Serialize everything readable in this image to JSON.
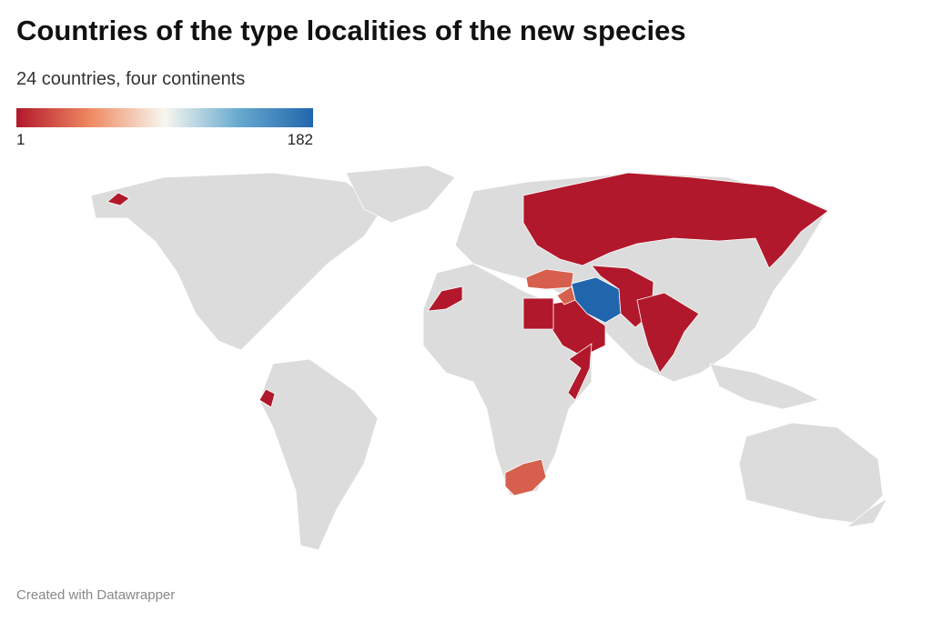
{
  "header": {
    "title": "Countries of the type localities of the new species",
    "subtitle": "24 countries, four continents"
  },
  "legend": {
    "min": 1,
    "max": 182,
    "colors": [
      "#b2182b",
      "#ef8a62",
      "#f7f7f0",
      "#67a9cf",
      "#2166ac"
    ]
  },
  "footer": {
    "credit": "Created with Datawrapper"
  }
}
